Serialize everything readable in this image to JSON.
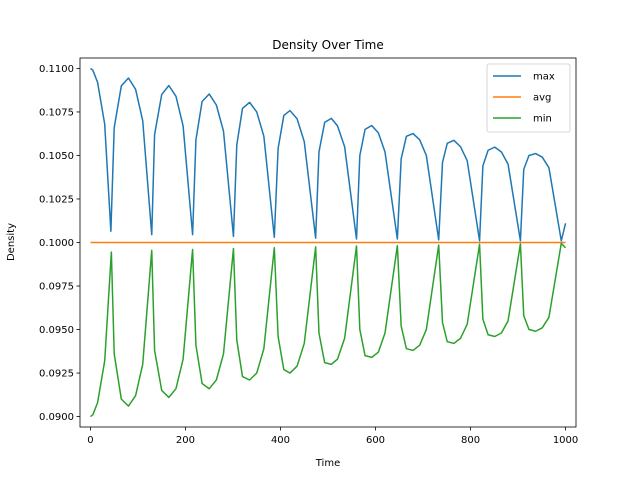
{
  "chart_data": {
    "type": "line",
    "title": "Density Over Time",
    "xlabel": "Time",
    "ylabel": "Density",
    "xlim": [
      -22,
      1022
    ],
    "ylim": [
      0.0894,
      0.1106
    ],
    "x_ticks": [
      0,
      200,
      400,
      600,
      800,
      1000
    ],
    "x_tick_labels": [
      "0",
      "200",
      "400",
      "600",
      "800",
      "1000"
    ],
    "y_ticks": [
      0.09,
      0.0925,
      0.095,
      0.0975,
      0.1,
      0.1025,
      0.105,
      0.1075,
      0.11
    ],
    "y_tick_labels": [
      "0.0900",
      "0.0925",
      "0.0950",
      "0.0975",
      "0.1000",
      "0.1025",
      "0.1050",
      "0.1075",
      "0.1100"
    ],
    "grid": false,
    "legend_position": "top-right",
    "series": [
      {
        "name": "max",
        "color": "#1f77b4",
        "x": [
          0,
          5,
          15,
          30,
          43,
          50,
          65,
          80,
          95,
          110,
          129,
          135,
          150,
          165,
          180,
          195,
          215,
          222,
          235,
          250,
          265,
          280,
          301,
          308,
          320,
          335,
          350,
          365,
          387,
          395,
          407,
          420,
          435,
          450,
          474,
          481,
          493,
          507,
          520,
          535,
          560,
          567,
          578,
          592,
          606,
          620,
          646,
          654,
          665,
          679,
          693,
          707,
          733,
          741,
          751,
          765,
          779,
          793,
          819,
          826,
          837,
          851,
          865,
          879,
          905,
          912,
          923,
          937,
          951,
          965,
          991,
          1000
        ],
        "y": [
          0.11,
          0.1099,
          0.1092,
          0.1068,
          0.10065,
          0.1066,
          0.109,
          0.10945,
          0.1088,
          0.107,
          0.10045,
          0.1062,
          0.1085,
          0.10902,
          0.1084,
          0.1067,
          0.10045,
          0.1059,
          0.1081,
          0.10853,
          0.1079,
          0.1064,
          0.10035,
          0.1056,
          0.1077,
          0.10805,
          0.1075,
          0.1061,
          0.1003,
          0.1054,
          0.1073,
          0.10758,
          0.1071,
          0.1058,
          0.10025,
          0.1052,
          0.1069,
          0.10713,
          0.1067,
          0.1055,
          0.1002,
          0.105,
          0.1065,
          0.10672,
          0.1063,
          0.1052,
          0.1002,
          0.1048,
          0.1061,
          0.10626,
          0.1059,
          0.105,
          0.10015,
          0.1046,
          0.1057,
          0.10587,
          0.1055,
          0.1047,
          0.1001,
          0.1044,
          0.1053,
          0.10548,
          0.1052,
          0.1045,
          0.1001,
          0.1042,
          0.105,
          0.10511,
          0.1049,
          0.1043,
          0.1001,
          0.1011
        ]
      },
      {
        "name": "avg",
        "color": "#ff7f0e",
        "x": [
          0,
          1000
        ],
        "y": [
          0.1,
          0.1
        ]
      },
      {
        "name": "min",
        "color": "#2ca02c",
        "x": [
          0,
          5,
          15,
          30,
          44,
          50,
          65,
          80,
          95,
          110,
          129,
          135,
          150,
          165,
          180,
          195,
          215,
          222,
          235,
          250,
          265,
          280,
          301,
          308,
          320,
          335,
          350,
          365,
          387,
          395,
          407,
          420,
          435,
          450,
          474,
          481,
          493,
          507,
          520,
          535,
          560,
          567,
          578,
          592,
          606,
          620,
          646,
          654,
          665,
          679,
          693,
          707,
          733,
          741,
          751,
          765,
          779,
          793,
          819,
          826,
          837,
          851,
          865,
          879,
          905,
          912,
          923,
          937,
          951,
          965,
          991,
          1000
        ],
        "y": [
          0.09,
          0.0901,
          0.0908,
          0.0932,
          0.09945,
          0.0936,
          0.091,
          0.0906,
          0.0912,
          0.093,
          0.09955,
          0.0938,
          0.0915,
          0.0911,
          0.0916,
          0.0933,
          0.0996,
          0.0941,
          0.0919,
          0.0916,
          0.0921,
          0.0936,
          0.09965,
          0.0944,
          0.0923,
          0.0921,
          0.0925,
          0.0939,
          0.0997,
          0.0946,
          0.0927,
          0.0925,
          0.0929,
          0.0942,
          0.09975,
          0.0948,
          0.0931,
          0.093,
          0.0933,
          0.0945,
          0.0998,
          0.095,
          0.0935,
          0.0934,
          0.0937,
          0.0948,
          0.09982,
          0.0952,
          0.0939,
          0.0938,
          0.0941,
          0.095,
          0.09985,
          0.0954,
          0.0943,
          0.0942,
          0.0945,
          0.0953,
          0.0999,
          0.0956,
          0.0947,
          0.0946,
          0.0948,
          0.0955,
          0.09992,
          0.0958,
          0.095,
          0.0949,
          0.0951,
          0.0957,
          0.09995,
          0.0997
        ]
      }
    ]
  }
}
